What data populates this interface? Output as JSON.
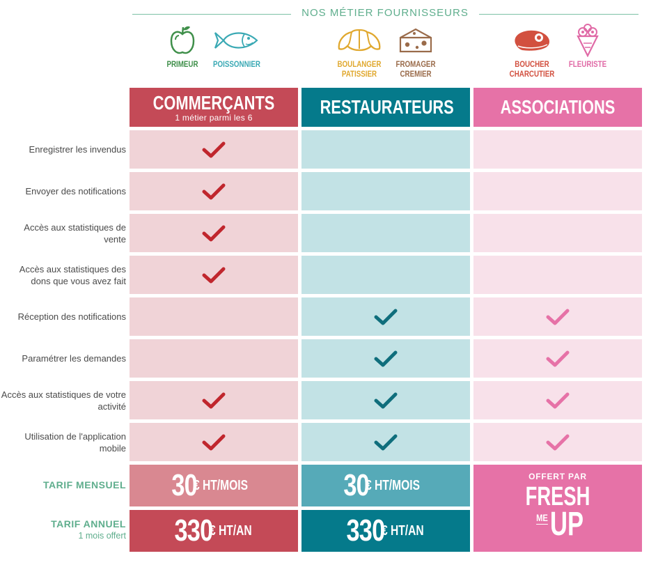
{
  "suppliers": {
    "title": "NOS MÉTIER FOURNISSEURS",
    "items": [
      {
        "label": "PRIMEUR",
        "icon": "apple-icon",
        "color": "#3f8f4a"
      },
      {
        "label": "POISSONNIER",
        "icon": "fish-icon",
        "color": "#3aa9b4"
      },
      {
        "label": "BOULANGER PATISSIER",
        "icon": "croissant-icon",
        "color": "#e0a82e"
      },
      {
        "label": "FROMAGER CREMIER",
        "icon": "cheese-icon",
        "color": "#9a6b4a"
      },
      {
        "label": "BOUCHER CHARCUTIER",
        "icon": "steak-icon",
        "color": "#d2503f"
      },
      {
        "label": "FLEURISTE",
        "icon": "flower-bouquet-icon",
        "color": "#e06aa6"
      }
    ]
  },
  "columns": [
    {
      "name": "COMMERÇANTS",
      "sub": "1 métier parmi les 6",
      "color": "#c44a57",
      "cell": "#f0d3d7",
      "check": "#c0262d"
    },
    {
      "name": "RESTAURATEURS",
      "sub": "",
      "color": "#057a8b",
      "cell": "#c2e2e5",
      "check": "#0f6e7c"
    },
    {
      "name": "ASSOCIATIONS",
      "sub": "",
      "color": "#e672a7",
      "cell": "#f8e1ea",
      "check": "#e672a7"
    }
  ],
  "rows": [
    {
      "label": "Enregistrer les invendus",
      "checks": [
        true,
        false,
        false
      ]
    },
    {
      "label": "Envoyer des notifications",
      "checks": [
        true,
        false,
        false
      ]
    },
    {
      "label": "Accès aux statistiques de vente",
      "checks": [
        true,
        false,
        false
      ]
    },
    {
      "label": "Accès aux statistiques des dons que vous avez fait",
      "checks": [
        true,
        false,
        false
      ]
    },
    {
      "label": "Réception des notifications",
      "checks": [
        false,
        true,
        true
      ]
    },
    {
      "label": "Paramétrer les demandes",
      "checks": [
        false,
        true,
        true
      ]
    },
    {
      "label": "Accès aux statistiques de votre activité",
      "checks": [
        true,
        true,
        true
      ]
    },
    {
      "label": "Utilisation de l'application mobile",
      "checks": [
        true,
        true,
        true
      ]
    }
  ],
  "pricing": {
    "monthly": {
      "label": "TARIF MENSUEL",
      "sub": "",
      "commercants": {
        "num": "30",
        "unit": "€ HT/MOIS"
      },
      "restaurateurs": {
        "num": "30",
        "unit": "€ HT/MOIS"
      }
    },
    "annual": {
      "label": "TARIF ANNUEL",
      "sub": "1 mois offert",
      "commercants": {
        "num": "330",
        "unit": "€ HT/AN"
      },
      "restaurateurs": {
        "num": "330",
        "unit": "€ HT/AN"
      }
    },
    "colors": {
      "commercants_monthly": "#d98891",
      "restaurateurs_monthly": "#56aab8",
      "commercants_annual": "#c44a57",
      "restaurateurs_annual": "#057a8b"
    },
    "associations": {
      "offert": "OFFERT PAR",
      "brand_line1": "FRESH",
      "brand_me": "ME",
      "brand_up": "UP"
    }
  }
}
